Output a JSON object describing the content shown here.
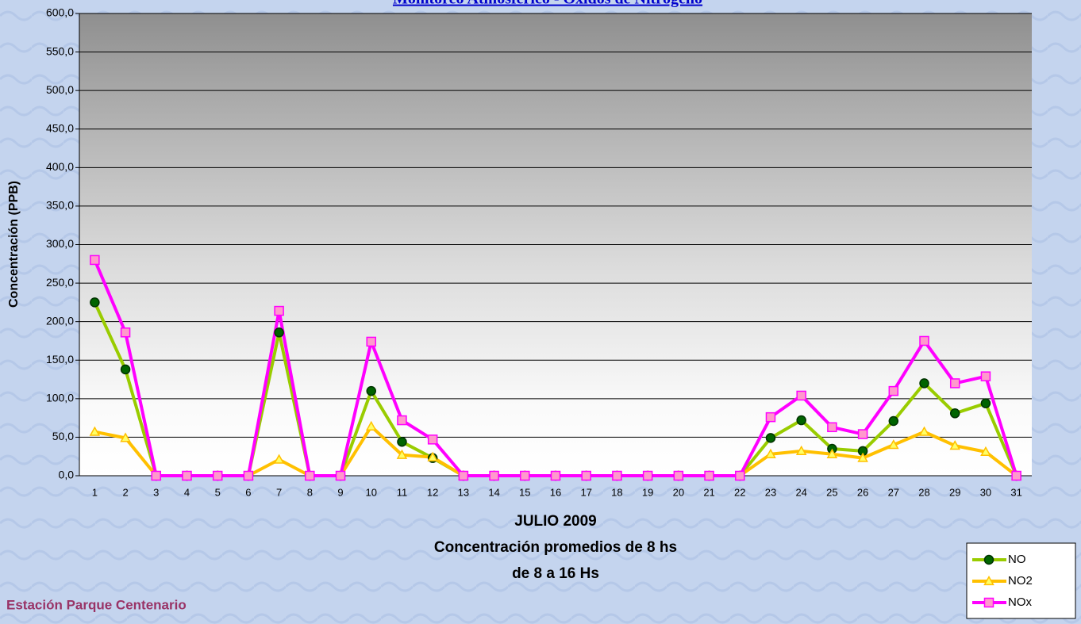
{
  "chart_data": {
    "type": "line",
    "title": "Monitoreo Atmosférico - Óxidos de Nitrógeno",
    "y_label": "Concentración (PPB)",
    "x_label_lines": [
      "JULIO 2009",
      "Concentración promedios de 8 hs",
      "de 8 a 16 Hs"
    ],
    "footer": "Estación Parque Centenario",
    "categories": [
      "1",
      "2",
      "3",
      "4",
      "5",
      "6",
      "7",
      "8",
      "9",
      "10",
      "11",
      "12",
      "13",
      "14",
      "15",
      "16",
      "17",
      "18",
      "19",
      "20",
      "21",
      "22",
      "23",
      "24",
      "25",
      "26",
      "27",
      "28",
      "29",
      "30",
      "31"
    ],
    "series": [
      {
        "name": "NO",
        "color": "#99cc00",
        "marker": "circle",
        "marker_color": "#006400",
        "values": [
          225,
          138,
          0,
          0,
          0,
          0,
          186,
          0,
          0,
          110,
          44,
          23,
          0,
          0,
          0,
          0,
          0,
          0,
          0,
          0,
          0,
          0,
          49,
          72,
          35,
          32,
          71,
          120,
          81,
          94,
          0
        ]
      },
      {
        "name": "NO2",
        "color": "#ffc000",
        "marker": "triangle",
        "marker_color": "#ffff66",
        "values": [
          57,
          49,
          0,
          0,
          0,
          0,
          21,
          0,
          0,
          64,
          27,
          24,
          0,
          0,
          0,
          0,
          0,
          0,
          0,
          0,
          0,
          0,
          28,
          32,
          28,
          23,
          40,
          57,
          39,
          31,
          0
        ]
      },
      {
        "name": "NOx",
        "color": "#ff00ff",
        "marker": "square",
        "marker_color": "#ff99cc",
        "values": [
          280,
          186,
          0,
          0,
          0,
          0,
          214,
          0,
          0,
          174,
          72,
          47,
          0,
          0,
          0,
          0,
          0,
          0,
          0,
          0,
          0,
          0,
          76,
          104,
          63,
          54,
          110,
          175,
          120,
          129,
          0
        ]
      }
    ],
    "ylim": [
      0,
      600
    ],
    "yticks": [
      {
        "value": 0,
        "label": "0,0"
      },
      {
        "value": 50,
        "label": "50,0"
      },
      {
        "value": 100,
        "label": "100,0"
      },
      {
        "value": 150,
        "label": "150,0"
      },
      {
        "value": 200,
        "label": "200,0"
      },
      {
        "value": 250,
        "label": "250,0"
      },
      {
        "value": 300,
        "label": "300,0"
      },
      {
        "value": 350,
        "label": "350,0"
      },
      {
        "value": 400,
        "label": "400,0"
      },
      {
        "value": 450,
        "label": "450,0"
      },
      {
        "value": 500,
        "label": "500,0"
      },
      {
        "value": 550,
        "label": "550,0"
      },
      {
        "value": 600,
        "label": "600,0"
      }
    ],
    "grid": true,
    "legend": "bottom-right"
  }
}
